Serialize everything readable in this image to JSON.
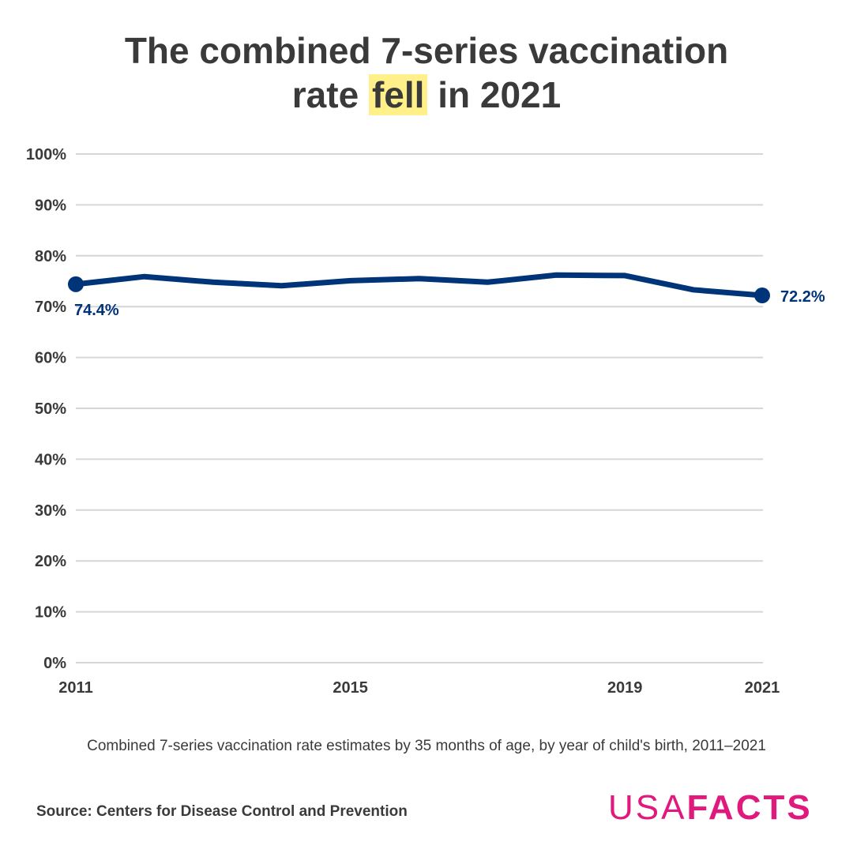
{
  "title": {
    "before": "The combined 7-series vaccination",
    "line2_before": "rate ",
    "highlight": "fell",
    "line2_after": " in 2021"
  },
  "subtitle": "Combined 7-series vaccination rate estimates by 35 months of age, by year of child's birth, 2011–2021",
  "source": "Source: Centers for Disease Control and Prevention",
  "logo": {
    "light": "USA",
    "bold": "FACTS",
    "color": "#e0197d"
  },
  "chart_data": {
    "type": "line",
    "title": "The combined 7-series vaccination rate fell in 2021",
    "x": [
      2011,
      2012,
      2013,
      2014,
      2015,
      2016,
      2017,
      2018,
      2019,
      2020,
      2021
    ],
    "series": [
      {
        "name": "Combined 7-series vaccination rate",
        "values": [
          74.4,
          75.9,
          74.8,
          74.1,
          75.1,
          75.5,
          74.8,
          76.2,
          76.1,
          73.3,
          72.2
        ],
        "color": "#003478"
      }
    ],
    "xticks": [
      "2011",
      "2015",
      "2019",
      "2021"
    ],
    "yticks": [
      "0%",
      "10%",
      "20%",
      "30%",
      "40%",
      "50%",
      "60%",
      "70%",
      "80%",
      "90%",
      "100%"
    ],
    "ylim": [
      0,
      100
    ],
    "annotations": [
      {
        "x": 2011,
        "label": "74.4%"
      },
      {
        "x": 2021,
        "label": "72.2%"
      }
    ],
    "grid": true
  }
}
